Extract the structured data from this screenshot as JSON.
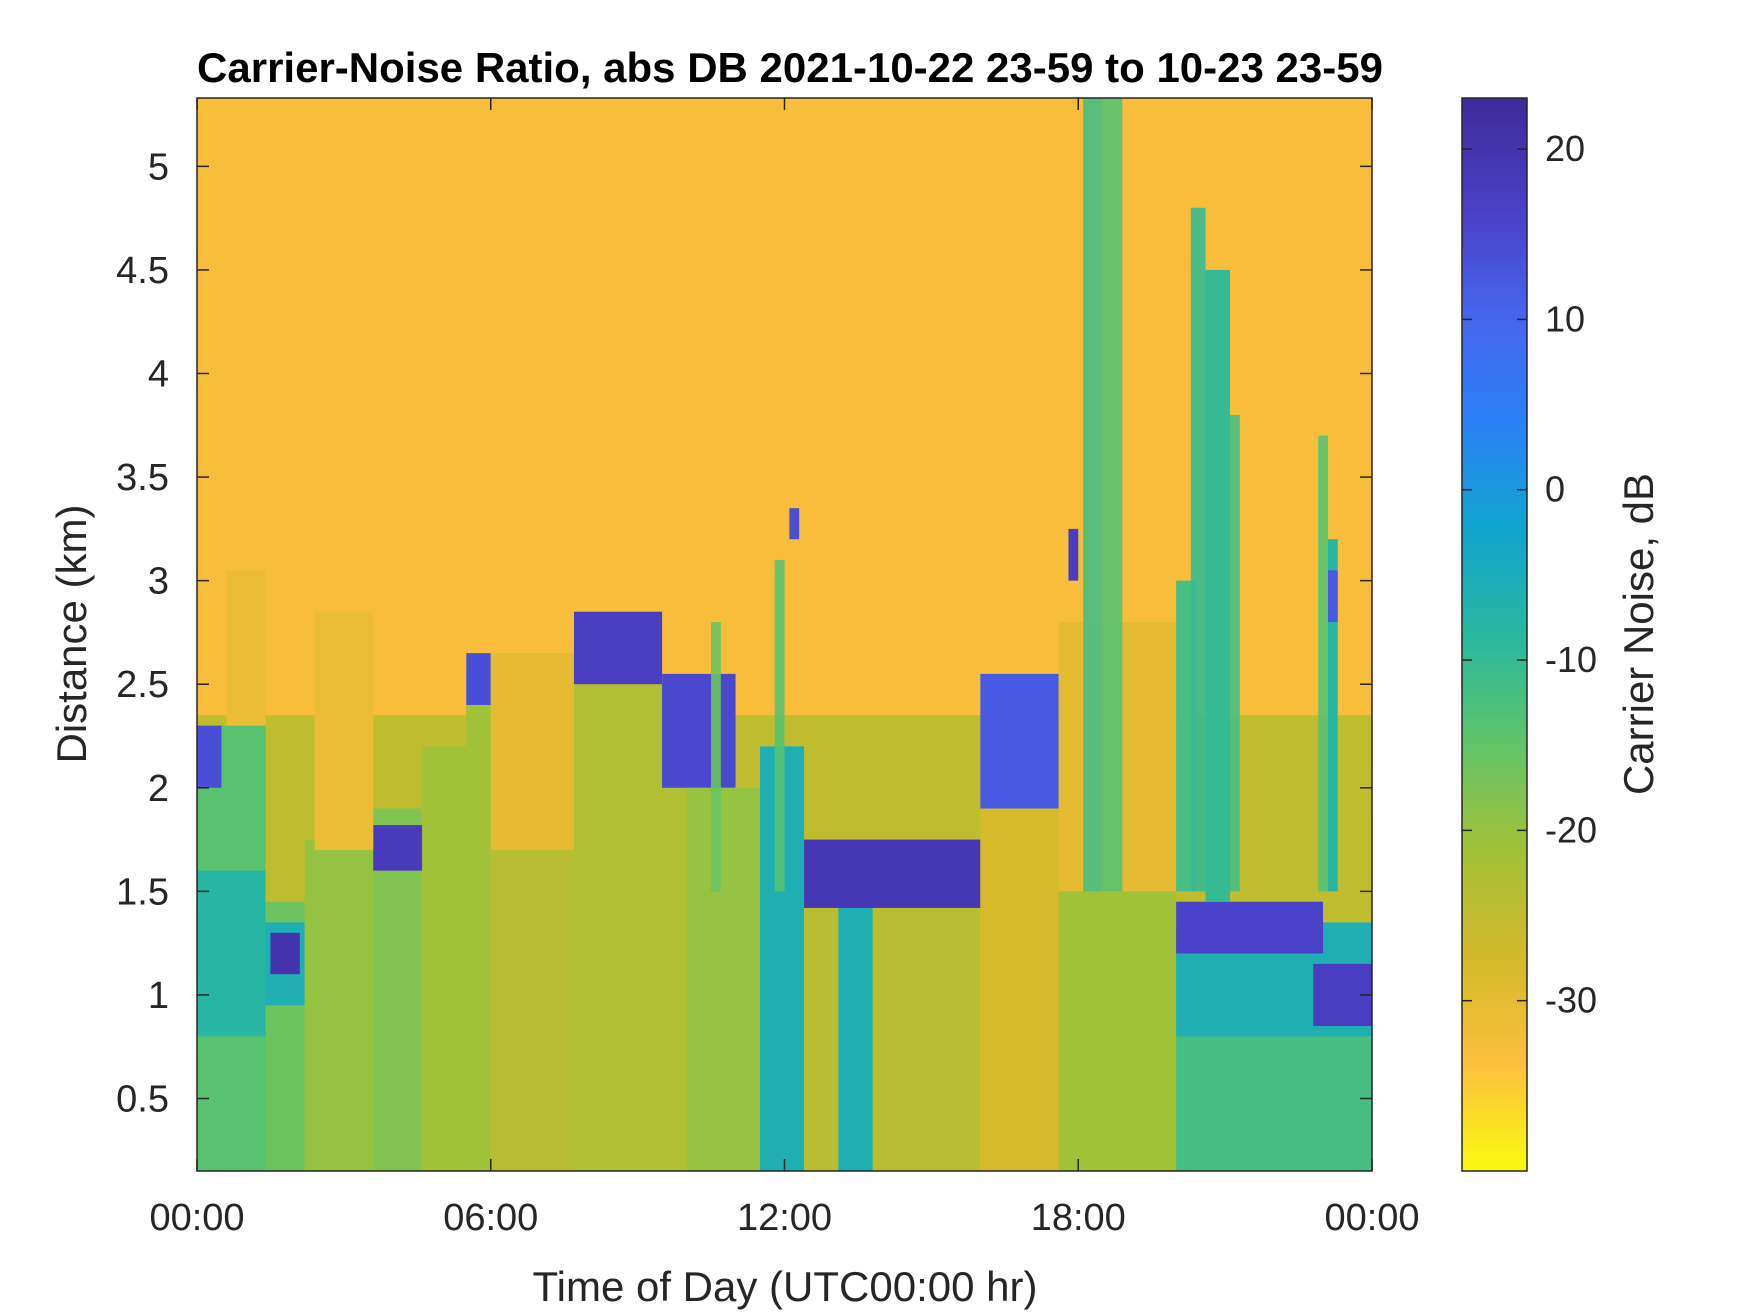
{
  "chart_data": {
    "type": "heatmap",
    "title": "Carrier-Noise Ratio, abs DB 2021-10-22 23-59 to 10-23 23-59",
    "xlabel": "Time of Day (UTC00:00 hr)",
    "ylabel": "Distance (km)",
    "colorbar_label": "Carrier Noise, dB",
    "x_range_hours": [
      0,
      24
    ],
    "x_ticks": [
      {
        "value": 0,
        "label": "00:00"
      },
      {
        "value": 6,
        "label": "06:00"
      },
      {
        "value": 12,
        "label": "12:00"
      },
      {
        "value": 18,
        "label": "18:00"
      },
      {
        "value": 24,
        "label": "00:00"
      }
    ],
    "ylim": [
      0.15,
      5.33
    ],
    "y_ticks": [
      {
        "value": 0.5,
        "label": "0.5"
      },
      {
        "value": 1,
        "label": "1"
      },
      {
        "value": 1.5,
        "label": "1.5"
      },
      {
        "value": 2,
        "label": "2"
      },
      {
        "value": 2.5,
        "label": "2.5"
      },
      {
        "value": 3,
        "label": "3"
      },
      {
        "value": 3.5,
        "label": "3.5"
      },
      {
        "value": 4,
        "label": "4"
      },
      {
        "value": 4.5,
        "label": "4.5"
      },
      {
        "value": 5,
        "label": "5"
      }
    ],
    "clim": [
      -40,
      23
    ],
    "colorbar_ticks": [
      {
        "value": 20,
        "label": "20"
      },
      {
        "value": 10,
        "label": "10"
      },
      {
        "value": 0,
        "label": "0"
      },
      {
        "value": -10,
        "label": "-10"
      },
      {
        "value": -20,
        "label": "-20"
      },
      {
        "value": -30,
        "label": "-30"
      }
    ],
    "colormap": [
      "#f9fb0e",
      "#fdbf3d",
      "#d3b92a",
      "#a2c138",
      "#5fc46a",
      "#29b7a0",
      "#10a4d0",
      "#2b80f6",
      "#4764ed",
      "#4a3ec4",
      "#3f2a9a"
    ],
    "background_value": -33,
    "regions": [
      {
        "t0": 0.0,
        "t1": 24.0,
        "d0": 0.15,
        "d1": 2.35,
        "v": -25
      },
      {
        "t0": 0.0,
        "t1": 1.4,
        "d0": 0.15,
        "d1": 2.3,
        "v": -14
      },
      {
        "t0": 0.0,
        "t1": 0.5,
        "d0": 2.0,
        "d1": 2.3,
        "v": 14
      },
      {
        "t0": 0.0,
        "t1": 1.4,
        "d0": 0.8,
        "d1": 1.6,
        "v": -8
      },
      {
        "t0": 1.4,
        "t1": 2.2,
        "d0": 0.15,
        "d1": 1.45,
        "v": -16
      },
      {
        "t0": 1.4,
        "t1": 2.2,
        "d0": 0.95,
        "d1": 1.35,
        "v": -6
      },
      {
        "t0": 1.5,
        "t1": 2.1,
        "d0": 1.1,
        "d1": 1.3,
        "v": 20
      },
      {
        "t0": 2.2,
        "t1": 3.6,
        "d0": 0.15,
        "d1": 1.75,
        "v": -20
      },
      {
        "t0": 3.6,
        "t1": 4.6,
        "d0": 0.15,
        "d1": 1.9,
        "v": -18
      },
      {
        "t0": 3.6,
        "t1": 4.6,
        "d0": 1.6,
        "d1": 1.82,
        "v": 18
      },
      {
        "t0": 2.4,
        "t1": 3.6,
        "d0": 1.7,
        "d1": 2.85,
        "v": -31
      },
      {
        "t0": 0.6,
        "t1": 1.4,
        "d0": 2.3,
        "d1": 3.05,
        "v": -31
      },
      {
        "t0": 4.6,
        "t1": 5.5,
        "d0": 0.15,
        "d1": 2.2,
        "v": -21
      },
      {
        "t0": 5.5,
        "t1": 6.0,
        "d0": 0.15,
        "d1": 2.55,
        "v": -21
      },
      {
        "t0": 5.5,
        "t1": 6.0,
        "d0": 2.4,
        "d1": 2.65,
        "v": 14
      },
      {
        "t0": 6.0,
        "t1": 7.7,
        "d0": 1.7,
        "d1": 2.65,
        "v": -30
      },
      {
        "t0": 6.0,
        "t1": 7.7,
        "d0": 0.15,
        "d1": 1.7,
        "v": -24
      },
      {
        "t0": 7.7,
        "t1": 10.0,
        "d0": 0.15,
        "d1": 2.5,
        "v": -23
      },
      {
        "t0": 7.7,
        "t1": 9.5,
        "d0": 2.5,
        "d1": 2.85,
        "v": 17
      },
      {
        "t0": 9.5,
        "t1": 11.0,
        "d0": 2.0,
        "d1": 2.55,
        "v": 15
      },
      {
        "t0": 10.0,
        "t1": 11.5,
        "d0": 0.15,
        "d1": 2.0,
        "v": -20
      },
      {
        "t0": 11.5,
        "t1": 12.4,
        "d0": 0.15,
        "d1": 2.2,
        "v": -6
      },
      {
        "t0": 12.1,
        "t1": 12.3,
        "d0": 3.2,
        "d1": 3.35,
        "v": 14
      },
      {
        "t0": 12.4,
        "t1": 16.0,
        "d0": 0.15,
        "d1": 1.45,
        "v": -24
      },
      {
        "t0": 13.1,
        "t1": 13.8,
        "d0": 0.15,
        "d1": 1.45,
        "v": -6
      },
      {
        "t0": 12.4,
        "t1": 16.0,
        "d0": 1.42,
        "d1": 1.75,
        "v": 19
      },
      {
        "t0": 16.0,
        "t1": 17.6,
        "d0": 0.15,
        "d1": 2.0,
        "v": -28
      },
      {
        "t0": 16.0,
        "t1": 17.6,
        "d0": 1.9,
        "d1": 2.55,
        "v": 12
      },
      {
        "t0": 17.6,
        "t1": 20.0,
        "d0": 0.15,
        "d1": 1.5,
        "v": -21
      },
      {
        "t0": 17.6,
        "t1": 20.0,
        "d0": 1.5,
        "d1": 2.8,
        "v": -30
      },
      {
        "t0": 17.8,
        "t1": 18.0,
        "d0": 3.0,
        "d1": 3.25,
        "v": 17
      },
      {
        "t0": 20.0,
        "t1": 24.0,
        "d0": 0.15,
        "d1": 1.2,
        "v": -12
      },
      {
        "t0": 20.0,
        "t1": 24.0,
        "d0": 0.8,
        "d1": 1.35,
        "v": -6
      },
      {
        "t0": 20.0,
        "t1": 23.0,
        "d0": 1.2,
        "d1": 1.45,
        "v": 16
      },
      {
        "t0": 22.8,
        "t1": 24.0,
        "d0": 0.85,
        "d1": 1.15,
        "v": 17
      },
      {
        "t0": 20.6,
        "t1": 21.1,
        "d0": 1.45,
        "d1": 4.5,
        "v": -10
      },
      {
        "t0": 20.0,
        "t1": 20.4,
        "d0": 1.5,
        "d1": 3.0,
        "v": -12
      },
      {
        "t0": 23.1,
        "t1": 23.3,
        "d0": 1.5,
        "d1": 3.2,
        "v": -8
      },
      {
        "t0": 23.1,
        "t1": 23.3,
        "d0": 2.8,
        "d1": 3.05,
        "v": 12
      }
    ],
    "streaks": [
      {
        "t0": 18.1,
        "t1": 18.5,
        "d_top": 5.33,
        "v": -12
      },
      {
        "t0": 18.5,
        "t1": 18.9,
        "d_top": 5.33,
        "v": -14
      },
      {
        "t0": 20.3,
        "t1": 20.6,
        "d_top": 4.8,
        "v": -10
      },
      {
        "t0": 21.1,
        "t1": 21.3,
        "d_top": 3.8,
        "v": -12
      },
      {
        "t0": 22.9,
        "t1": 23.1,
        "d_top": 3.7,
        "v": -14
      },
      {
        "t0": 11.8,
        "t1": 12.0,
        "d_top": 3.1,
        "v": -14
      },
      {
        "t0": 10.5,
        "t1": 10.7,
        "d_top": 2.8,
        "v": -16
      }
    ]
  }
}
